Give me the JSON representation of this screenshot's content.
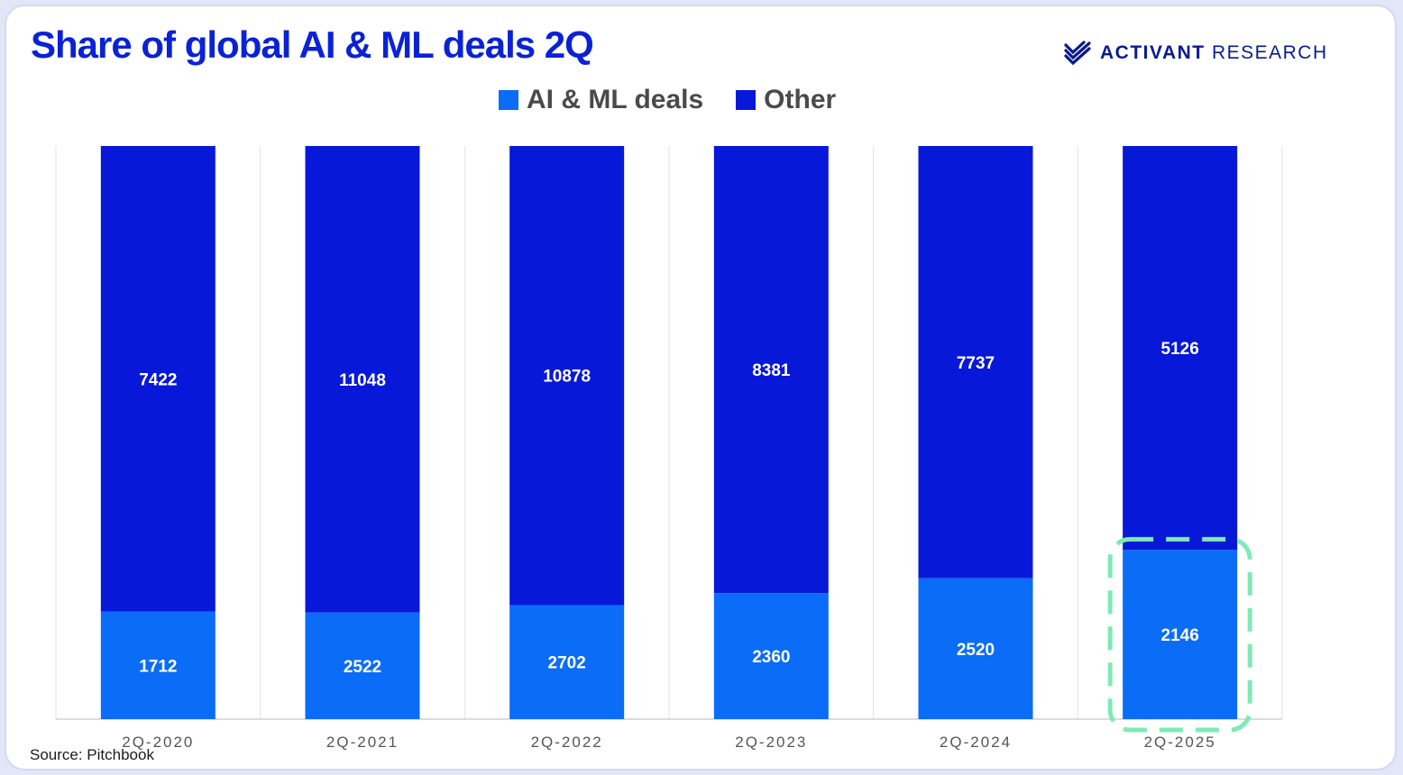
{
  "title": "Share of global AI & ML deals 2Q",
  "brand": {
    "name_bold": "ACTIVANT",
    "name_rest": " RESEARCH",
    "icon": "activant-stripes-logo",
    "color": "#0a1a8f"
  },
  "source": "Source: Pitchbook",
  "colors": {
    "ai_ml": "#0a6cf7",
    "other": "#0818d9",
    "highlight": "#7eeab5",
    "gridline": "#e2e2e2"
  },
  "chart_data": {
    "type": "bar",
    "stacked": true,
    "title": "Share of global AI & ML deals 2Q",
    "categories": [
      "2Q-2020",
      "2Q-2021",
      "2Q-2022",
      "2Q-2023",
      "2Q-2024",
      "2Q-2025"
    ],
    "series": [
      {
        "name": "AI & ML deals",
        "color": "#0a6cf7",
        "values": [
          1712,
          2522,
          2702,
          2360,
          2520,
          2146
        ]
      },
      {
        "name": "Other",
        "color": "#0818d9",
        "values": [
          7422,
          11048,
          10878,
          8381,
          7737,
          5126
        ]
      }
    ],
    "normalized_to_100_percent": true,
    "legend_position": "top-center",
    "data_labels": true,
    "highlighted_category": "2Q-2025",
    "grid": "vertical-separators"
  }
}
